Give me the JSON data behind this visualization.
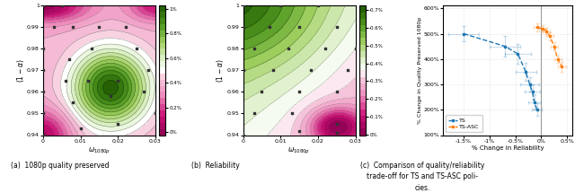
{
  "fig_width": 6.4,
  "fig_height": 2.15,
  "panel_a_title": "(a)  1080p quality preserved",
  "panel_b_title": "(b)  Reliability",
  "panel_c_title": "(c)  Comparison of quality/reliability\ntrade-off for TS and TS-ASC poli-\ncies.",
  "xlabel_ab": "$\\omega_{1080p}$",
  "ylabel_ab": "$(1 - \\alpha)$",
  "xlim_ab": [
    0.0,
    0.03
  ],
  "ylim_ab": [
    0.94,
    1.0
  ],
  "colorbar_a_labels": [
    "0%",
    "0.2%",
    "0.4%",
    "0.6%",
    "0.8%",
    "1%"
  ],
  "colorbar_b_labels": [
    "0%",
    "-0.1%",
    "-0.2%",
    "-0.3%",
    "-0.4%",
    "-0.5%",
    "-0.6%",
    "-0.7%"
  ],
  "ts_x": [
    -1.5,
    -0.7,
    -0.45,
    -0.3,
    -0.22,
    -0.17,
    -0.13,
    -0.08
  ],
  "ts_y": [
    500,
    450,
    420,
    350,
    300,
    270,
    230,
    200
  ],
  "ts_xerr": [
    0.3,
    0.3,
    0.25,
    0.2,
    0.18,
    0.15,
    0.12,
    0.1
  ],
  "ts_yerr": [
    30,
    40,
    40,
    35,
    30,
    30,
    30,
    25
  ],
  "asc_x": [
    -0.08,
    0.03,
    0.1,
    0.17,
    0.25,
    0.32,
    0.4
  ],
  "asc_y": [
    525,
    520,
    510,
    490,
    450,
    400,
    370
  ],
  "asc_xerr": [
    0.07,
    0.07,
    0.07,
    0.07,
    0.07,
    0.07,
    0.08
  ],
  "asc_yerr": [
    15,
    12,
    12,
    15,
    15,
    15,
    20
  ],
  "ts_color": "#1f77b4",
  "asc_color": "#ff7f0e",
  "xlabel_c": "% Change in Reliability",
  "ylabel_c": "% Change in Quality Preserved 1080p",
  "xlim_c": [
    -1.9,
    0.6
  ],
  "ylim_c": [
    100,
    610
  ],
  "yticks_c": [
    100,
    200,
    300,
    400,
    500,
    600
  ],
  "ytick_labels_c": [
    "100%",
    "200%",
    "300%",
    "400%",
    "500%",
    "600%"
  ],
  "xticks_c": [
    -1.5,
    -1.0,
    -0.5,
    0.0,
    0.5
  ],
  "xtick_labels_c": [
    "-1.5%",
    "-1%",
    "-0.5%",
    "0%",
    "0.5%"
  ],
  "scatter_points_a": [
    [
      0.0,
      1.0
    ],
    [
      0.005,
      1.0
    ],
    [
      0.003,
      0.99
    ],
    [
      0.0,
      0.98
    ],
    [
      0.008,
      0.99
    ],
    [
      0.015,
      0.99
    ],
    [
      0.022,
      0.99
    ],
    [
      0.0,
      0.97
    ],
    [
      0.007,
      0.975
    ],
    [
      0.013,
      0.98
    ],
    [
      0.025,
      0.98
    ],
    [
      0.0,
      0.96
    ],
    [
      0.006,
      0.965
    ],
    [
      0.012,
      0.965
    ],
    [
      0.02,
      0.965
    ],
    [
      0.028,
      0.97
    ],
    [
      0.0,
      0.95
    ],
    [
      0.008,
      0.955
    ],
    [
      0.018,
      0.958
    ],
    [
      0.027,
      0.96
    ],
    [
      0.0,
      0.94
    ],
    [
      0.01,
      0.943
    ],
    [
      0.02,
      0.945
    ],
    [
      0.03,
      0.95
    ]
  ],
  "scatter_points_b": [
    [
      0.0,
      1.0
    ],
    [
      0.01,
      1.0
    ],
    [
      0.02,
      1.0
    ],
    [
      0.0,
      0.99
    ],
    [
      0.007,
      0.99
    ],
    [
      0.015,
      0.99
    ],
    [
      0.025,
      0.99
    ],
    [
      0.003,
      0.98
    ],
    [
      0.012,
      0.98
    ],
    [
      0.022,
      0.98
    ],
    [
      0.03,
      0.98
    ],
    [
      0.0,
      0.97
    ],
    [
      0.008,
      0.97
    ],
    [
      0.018,
      0.97
    ],
    [
      0.028,
      0.97
    ],
    [
      0.005,
      0.96
    ],
    [
      0.015,
      0.96
    ],
    [
      0.025,
      0.96
    ],
    [
      0.003,
      0.95
    ],
    [
      0.013,
      0.95
    ],
    [
      0.025,
      0.945
    ],
    [
      0.0,
      0.94
    ],
    [
      0.015,
      0.942
    ],
    [
      0.025,
      0.941
    ]
  ]
}
